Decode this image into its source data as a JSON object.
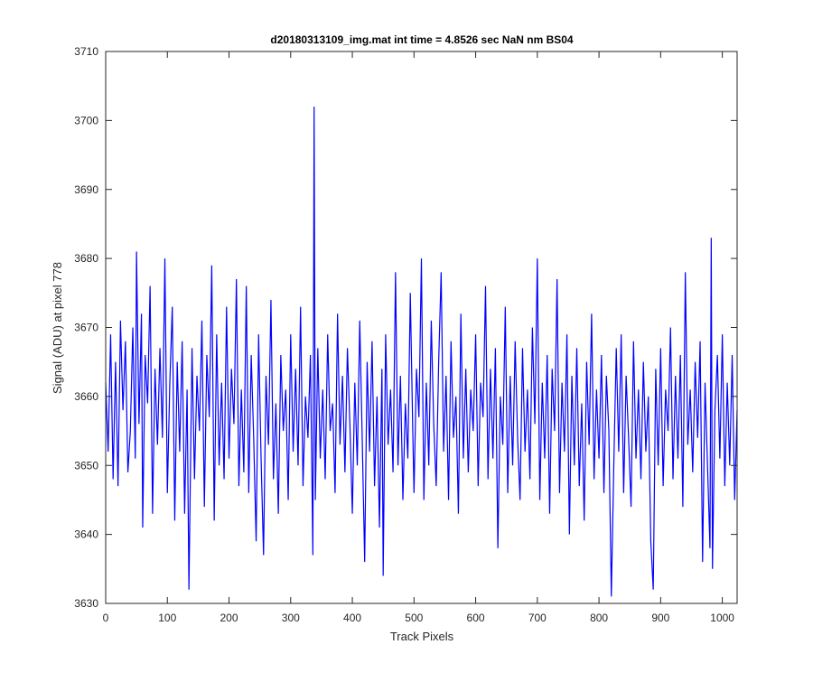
{
  "chart_data": {
    "type": "line",
    "title": "d20180313109_img.mat int time = 4.8526 sec  NaN nm BS04",
    "xlabel": "Track Pixels",
    "ylabel": "Signal (ADU) at pixel 778",
    "xlim": [
      0,
      1024
    ],
    "ylim": [
      3630,
      3710
    ],
    "xticks": [
      0,
      100,
      200,
      300,
      400,
      500,
      600,
      700,
      800,
      900,
      1000
    ],
    "yticks": [
      3630,
      3640,
      3650,
      3660,
      3670,
      3680,
      3690,
      3700,
      3710
    ],
    "grid": false,
    "legend": "none",
    "series_color": "#0000ff",
    "series": [
      {
        "points": [
          [
            0,
            3662
          ],
          [
            4,
            3652
          ],
          [
            8,
            3669
          ],
          [
            12,
            3648
          ],
          [
            16,
            3665
          ],
          [
            20,
            3647
          ],
          [
            24,
            3671
          ],
          [
            28,
            3658
          ],
          [
            32,
            3668
          ],
          [
            36,
            3649
          ],
          [
            40,
            3655
          ],
          [
            44,
            3670
          ],
          [
            48,
            3651
          ],
          [
            50,
            3681
          ],
          [
            54,
            3656
          ],
          [
            58,
            3672
          ],
          [
            60,
            3641
          ],
          [
            64,
            3666
          ],
          [
            68,
            3659
          ],
          [
            72,
            3676
          ],
          [
            76,
            3643
          ],
          [
            80,
            3664
          ],
          [
            84,
            3653
          ],
          [
            88,
            3667
          ],
          [
            92,
            3654
          ],
          [
            96,
            3680
          ],
          [
            100,
            3646
          ],
          [
            104,
            3662
          ],
          [
            108,
            3673
          ],
          [
            112,
            3642
          ],
          [
            116,
            3665
          ],
          [
            120,
            3652
          ],
          [
            124,
            3668
          ],
          [
            128,
            3643
          ],
          [
            132,
            3661
          ],
          [
            135,
            3632
          ],
          [
            140,
            3667
          ],
          [
            144,
            3648
          ],
          [
            148,
            3663
          ],
          [
            152,
            3655
          ],
          [
            156,
            3671
          ],
          [
            160,
            3644
          ],
          [
            164,
            3666
          ],
          [
            168,
            3657
          ],
          [
            172,
            3679
          ],
          [
            176,
            3642
          ],
          [
            180,
            3669
          ],
          [
            184,
            3650
          ],
          [
            188,
            3662
          ],
          [
            192,
            3648
          ],
          [
            196,
            3673
          ],
          [
            200,
            3651
          ],
          [
            204,
            3664
          ],
          [
            208,
            3656
          ],
          [
            212,
            3677
          ],
          [
            216,
            3647
          ],
          [
            220,
            3661
          ],
          [
            224,
            3649
          ],
          [
            228,
            3676
          ],
          [
            232,
            3646
          ],
          [
            236,
            3666
          ],
          [
            240,
            3654
          ],
          [
            244,
            3639
          ],
          [
            248,
            3669
          ],
          [
            252,
            3651
          ],
          [
            256,
            3637
          ],
          [
            260,
            3663
          ],
          [
            264,
            3653
          ],
          [
            268,
            3674
          ],
          [
            272,
            3648
          ],
          [
            276,
            3659
          ],
          [
            280,
            3643
          ],
          [
            284,
            3666
          ],
          [
            288,
            3655
          ],
          [
            292,
            3661
          ],
          [
            296,
            3645
          ],
          [
            300,
            3669
          ],
          [
            304,
            3652
          ],
          [
            308,
            3664
          ],
          [
            312,
            3650
          ],
          [
            316,
            3673
          ],
          [
            320,
            3647
          ],
          [
            324,
            3660
          ],
          [
            328,
            3654
          ],
          [
            332,
            3666
          ],
          [
            336,
            3637
          ],
          [
            338,
            3702
          ],
          [
            340,
            3645
          ],
          [
            344,
            3667
          ],
          [
            348,
            3651
          ],
          [
            352,
            3661
          ],
          [
            356,
            3648
          ],
          [
            360,
            3669
          ],
          [
            364,
            3655
          ],
          [
            368,
            3659
          ],
          [
            372,
            3646
          ],
          [
            376,
            3672
          ],
          [
            380,
            3653
          ],
          [
            384,
            3663
          ],
          [
            388,
            3649
          ],
          [
            392,
            3667
          ],
          [
            396,
            3656
          ],
          [
            400,
            3643
          ],
          [
            404,
            3662
          ],
          [
            408,
            3650
          ],
          [
            412,
            3671
          ],
          [
            416,
            3654
          ],
          [
            420,
            3636
          ],
          [
            424,
            3665
          ],
          [
            428,
            3652
          ],
          [
            432,
            3668
          ],
          [
            436,
            3647
          ],
          [
            440,
            3660
          ],
          [
            444,
            3641
          ],
          [
            448,
            3664
          ],
          [
            450,
            3634
          ],
          [
            454,
            3669
          ],
          [
            458,
            3653
          ],
          [
            462,
            3661
          ],
          [
            466,
            3649
          ],
          [
            470,
            3678
          ],
          [
            474,
            3650
          ],
          [
            478,
            3663
          ],
          [
            482,
            3645
          ],
          [
            486,
            3659
          ],
          [
            490,
            3651
          ],
          [
            494,
            3675
          ],
          [
            498,
            3655
          ],
          [
            500,
            3646
          ],
          [
            504,
            3664
          ],
          [
            508,
            3657
          ],
          [
            512,
            3680
          ],
          [
            516,
            3645
          ],
          [
            520,
            3662
          ],
          [
            524,
            3650
          ],
          [
            528,
            3671
          ],
          [
            532,
            3656
          ],
          [
            536,
            3647
          ],
          [
            540,
            3665
          ],
          [
            544,
            3678
          ],
          [
            548,
            3652
          ],
          [
            552,
            3663
          ],
          [
            556,
            3645
          ],
          [
            560,
            3668
          ],
          [
            564,
            3654
          ],
          [
            568,
            3660
          ],
          [
            572,
            3643
          ],
          [
            576,
            3672
          ],
          [
            580,
            3651
          ],
          [
            584,
            3664
          ],
          [
            588,
            3649
          ],
          [
            592,
            3661
          ],
          [
            596,
            3655
          ],
          [
            600,
            3669
          ],
          [
            604,
            3647
          ],
          [
            608,
            3662
          ],
          [
            612,
            3657
          ],
          [
            616,
            3676
          ],
          [
            620,
            3648
          ],
          [
            624,
            3664
          ],
          [
            628,
            3651
          ],
          [
            632,
            3667
          ],
          [
            636,
            3638
          ],
          [
            640,
            3660
          ],
          [
            644,
            3653
          ],
          [
            648,
            3673
          ],
          [
            652,
            3646
          ],
          [
            656,
            3663
          ],
          [
            660,
            3650
          ],
          [
            664,
            3668
          ],
          [
            668,
            3654
          ],
          [
            672,
            3645
          ],
          [
            676,
            3667
          ],
          [
            680,
            3652
          ],
          [
            684,
            3661
          ],
          [
            688,
            3648
          ],
          [
            692,
            3670
          ],
          [
            696,
            3656
          ],
          [
            700,
            3680
          ],
          [
            704,
            3645
          ],
          [
            708,
            3662
          ],
          [
            712,
            3651
          ],
          [
            716,
            3666
          ],
          [
            720,
            3643
          ],
          [
            724,
            3664
          ],
          [
            728,
            3655
          ],
          [
            732,
            3677
          ],
          [
            736,
            3646
          ],
          [
            740,
            3662
          ],
          [
            744,
            3652
          ],
          [
            748,
            3669
          ],
          [
            752,
            3640
          ],
          [
            756,
            3663
          ],
          [
            760,
            3650
          ],
          [
            764,
            3667
          ],
          [
            768,
            3647
          ],
          [
            772,
            3659
          ],
          [
            776,
            3642
          ],
          [
            780,
            3665
          ],
          [
            784,
            3653
          ],
          [
            788,
            3672
          ],
          [
            792,
            3648
          ],
          [
            796,
            3661
          ],
          [
            800,
            3651
          ],
          [
            804,
            3666
          ],
          [
            808,
            3646
          ],
          [
            812,
            3663
          ],
          [
            816,
            3655
          ],
          [
            820,
            3631
          ],
          [
            824,
            3650
          ],
          [
            828,
            3667
          ],
          [
            832,
            3652
          ],
          [
            836,
            3669
          ],
          [
            840,
            3646
          ],
          [
            844,
            3663
          ],
          [
            848,
            3654
          ],
          [
            852,
            3644
          ],
          [
            856,
            3668
          ],
          [
            860,
            3651
          ],
          [
            864,
            3661
          ],
          [
            868,
            3648
          ],
          [
            872,
            3665
          ],
          [
            876,
            3652
          ],
          [
            880,
            3660
          ],
          [
            884,
            3639
          ],
          [
            888,
            3632
          ],
          [
            892,
            3664
          ],
          [
            896,
            3650
          ],
          [
            900,
            3667
          ],
          [
            904,
            3647
          ],
          [
            908,
            3661
          ],
          [
            912,
            3655
          ],
          [
            916,
            3670
          ],
          [
            920,
            3648
          ],
          [
            924,
            3663
          ],
          [
            928,
            3651
          ],
          [
            932,
            3666
          ],
          [
            936,
            3644
          ],
          [
            940,
            3678
          ],
          [
            944,
            3653
          ],
          [
            948,
            3661
          ],
          [
            952,
            3649
          ],
          [
            956,
            3665
          ],
          [
            960,
            3654
          ],
          [
            964,
            3668
          ],
          [
            968,
            3636
          ],
          [
            972,
            3662
          ],
          [
            976,
            3650
          ],
          [
            980,
            3638
          ],
          [
            982,
            3683
          ],
          [
            984,
            3635
          ],
          [
            988,
            3658
          ],
          [
            992,
            3666
          ],
          [
            996,
            3651
          ],
          [
            1000,
            3669
          ],
          [
            1004,
            3647
          ],
          [
            1008,
            3662
          ],
          [
            1012,
            3650
          ],
          [
            1016,
            3666
          ],
          [
            1020,
            3645
          ],
          [
            1024,
            3658
          ]
        ]
      }
    ]
  }
}
